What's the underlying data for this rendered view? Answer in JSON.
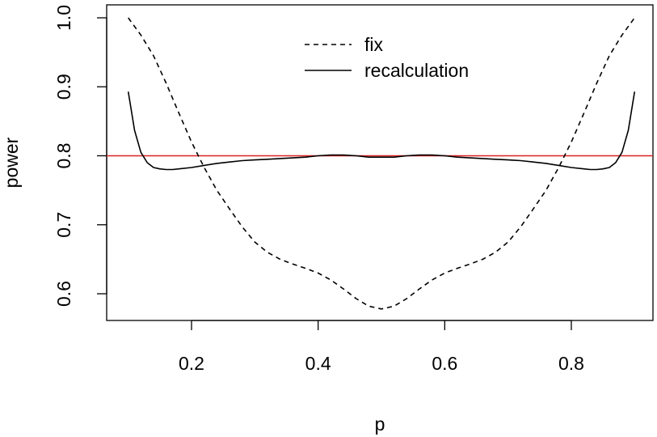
{
  "chart_data": {
    "type": "line",
    "title": "",
    "xlabel": "p",
    "ylabel": "power",
    "xlim": [
      0.1,
      0.9
    ],
    "ylim": [
      0.58,
      1.0
    ],
    "xticks": [
      0.2,
      0.4,
      0.6,
      0.8
    ],
    "xtick_labels": [
      "0.2",
      "0.4",
      "0.6",
      "0.8"
    ],
    "yticks": [
      0.6,
      0.7,
      0.8,
      0.9,
      1.0
    ],
    "ytick_labels": [
      "0.6",
      "0.7",
      "0.8",
      "0.9",
      "1.0"
    ],
    "grid": false,
    "legend": {
      "position": "top-center"
    },
    "series": [
      {
        "name": "fix",
        "line_style": "dashed",
        "color": "#000000",
        "x": [
          0.1,
          0.12,
          0.14,
          0.16,
          0.18,
          0.2,
          0.22,
          0.24,
          0.26,
          0.28,
          0.3,
          0.32,
          0.34,
          0.36,
          0.38,
          0.4,
          0.42,
          0.44,
          0.46,
          0.48,
          0.5,
          0.52,
          0.54,
          0.56,
          0.58,
          0.6,
          0.62,
          0.64,
          0.66,
          0.68,
          0.7,
          0.72,
          0.74,
          0.76,
          0.78,
          0.8,
          0.82,
          0.84,
          0.86,
          0.88,
          0.9
        ],
        "y": [
          1.0,
          0.975,
          0.945,
          0.905,
          0.862,
          0.82,
          0.783,
          0.75,
          0.723,
          0.697,
          0.675,
          0.66,
          0.65,
          0.643,
          0.637,
          0.63,
          0.62,
          0.607,
          0.593,
          0.582,
          0.578,
          0.582,
          0.593,
          0.607,
          0.62,
          0.63,
          0.637,
          0.643,
          0.65,
          0.66,
          0.675,
          0.697,
          0.723,
          0.75,
          0.783,
          0.82,
          0.862,
          0.905,
          0.945,
          0.975,
          1.0
        ]
      },
      {
        "name": "recalculation",
        "line_style": "solid",
        "color": "#000000",
        "x": [
          0.1,
          0.11,
          0.12,
          0.13,
          0.14,
          0.15,
          0.16,
          0.17,
          0.18,
          0.2,
          0.22,
          0.24,
          0.26,
          0.28,
          0.3,
          0.32,
          0.34,
          0.36,
          0.38,
          0.4,
          0.42,
          0.44,
          0.46,
          0.48,
          0.5,
          0.52,
          0.54,
          0.56,
          0.58,
          0.6,
          0.62,
          0.64,
          0.66,
          0.68,
          0.7,
          0.72,
          0.74,
          0.76,
          0.78,
          0.8,
          0.82,
          0.83,
          0.84,
          0.85,
          0.86,
          0.87,
          0.88,
          0.89,
          0.9
        ],
        "y": [
          0.893,
          0.837,
          0.805,
          0.79,
          0.783,
          0.781,
          0.78,
          0.78,
          0.781,
          0.783,
          0.786,
          0.789,
          0.791,
          0.793,
          0.794,
          0.795,
          0.796,
          0.797,
          0.798,
          0.8,
          0.801,
          0.801,
          0.8,
          0.798,
          0.798,
          0.798,
          0.8,
          0.801,
          0.801,
          0.8,
          0.798,
          0.797,
          0.796,
          0.795,
          0.794,
          0.793,
          0.791,
          0.789,
          0.786,
          0.783,
          0.781,
          0.78,
          0.78,
          0.781,
          0.783,
          0.79,
          0.805,
          0.837,
          0.893
        ]
      }
    ],
    "reference_lines": [
      {
        "orientation": "horizontal",
        "y": 0.8,
        "color": "#dd2222"
      }
    ]
  }
}
